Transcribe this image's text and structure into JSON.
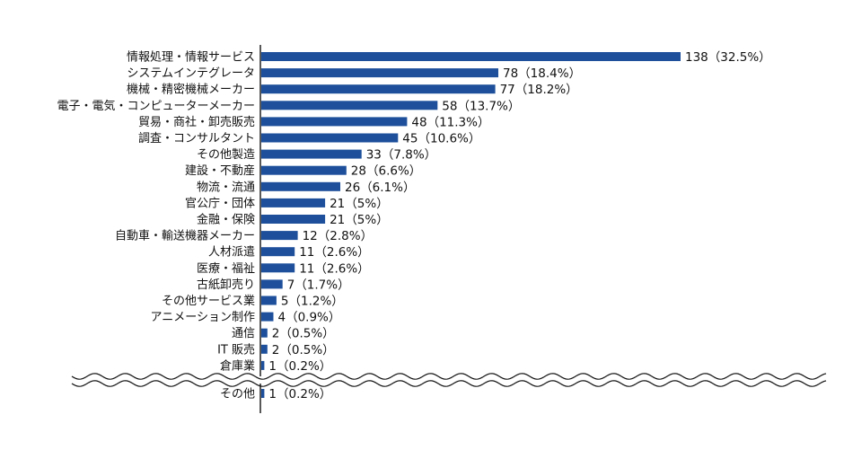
{
  "chart_data": {
    "type": "bar",
    "orientation": "horizontal",
    "title": "",
    "xlabel": "",
    "ylabel": "",
    "xlim": [
      0,
      138
    ],
    "grid": false,
    "bar_color": "#1d4f9b",
    "axis_color": "#111111",
    "categories": [
      "情報処理・情報サービス",
      "システムインテグレータ",
      "機械・精密機械メーカー",
      "電子・電気・コンピューターメーカー",
      "貿易・商社・卸売販売",
      "調査・コンサルタント",
      "その他製造",
      "建設・不動産",
      "物流・流通",
      "官公庁・団体",
      "金融・保険",
      "自動車・輸送機器メーカー",
      "人材派遣",
      "医療・福祉",
      "古紙卸売り",
      "その他サービス業",
      "アニメーション制作",
      "通信",
      "IT 販売",
      "倉庫業",
      "その他"
    ],
    "values": [
      138,
      78,
      77,
      58,
      48,
      45,
      33,
      28,
      26,
      21,
      21,
      12,
      11,
      11,
      7,
      5,
      4,
      2,
      2,
      1,
      1
    ],
    "value_labels": [
      "138（32.5%）",
      "78（18.4%）",
      "77（18.2%）",
      "58（13.7%）",
      "48（11.3%）",
      "45（10.6%）",
      "33（7.8%）",
      "28（6.6%）",
      "26（6.1%）",
      "21（5%）",
      "21（5%）",
      "12（2.8%）",
      "11（2.6%）",
      "11（2.6%）",
      "7（1.7%）",
      "5（1.2%）",
      "4（0.9%）",
      "2（0.5%）",
      "2（0.5%）",
      "1（0.2%）",
      "1（0.2%）"
    ],
    "axis_break_before_last": true
  }
}
